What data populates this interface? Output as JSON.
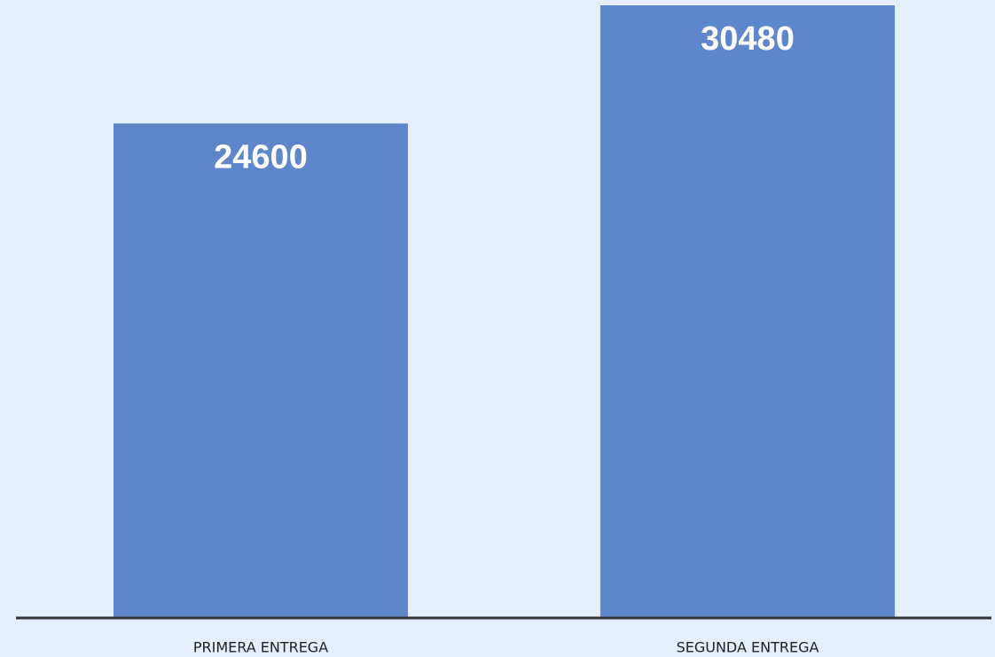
{
  "chart_data": {
    "type": "bar",
    "categories": [
      "PRIMERA ENTREGA",
      "SEGUNDA ENTREGA"
    ],
    "values": [
      24600,
      30480
    ],
    "color": "#5e87cb"
  }
}
